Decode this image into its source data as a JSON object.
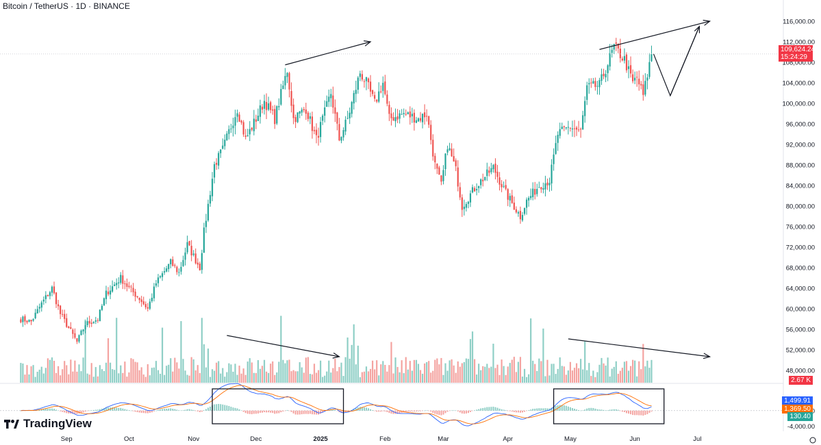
{
  "header": {
    "title": "Bitcoin / TetherUS · 1D · BINANCE"
  },
  "brand": {
    "name": "TradingView"
  },
  "price_badge": {
    "price": "109,624.24",
    "countdown": "15:24:29"
  },
  "volume_badge": "2.67 K",
  "macd_badges": {
    "macd": "1,499.91",
    "signal": "1,369.50",
    "hist": "130.40"
  },
  "colors": {
    "up": "#26a69a",
    "down": "#ef5350",
    "vol_up": "#8fcfc6",
    "vol_down": "#f4a3a0",
    "macd_line": "#2962ff",
    "signal_line": "#ff6d00"
  },
  "chart_data": {
    "type": "candlestick",
    "price_axis": {
      "ticks": [
        "116,000.00",
        "112,000.00",
        "108,000.00",
        "104,000.00",
        "100,000.00",
        "96,000.00",
        "92,000.00",
        "88,000.00",
        "84,000.00",
        "80,000.00",
        "76,000.00",
        "72,000.00",
        "68,000.00",
        "64,000.00",
        "60,000.00",
        "56,000.00",
        "52,000.00",
        "48,000.00"
      ],
      "range": [
        46000,
        118000
      ]
    },
    "macd_axis": {
      "ticks": [
        "0.00",
        "-4,000.00"
      ],
      "range": [
        -5000,
        6000
      ]
    },
    "time_axis": [
      "Sep",
      "Oct",
      "Nov",
      "Dec",
      "2025",
      "Feb",
      "Mar",
      "Apr",
      "May",
      "Jun",
      "Jul"
    ],
    "price_path": [
      [
        "2024-08-10",
        58000
      ],
      [
        "2024-08-15",
        57500
      ],
      [
        "2024-08-20",
        61000
      ],
      [
        "2024-08-25",
        64000
      ],
      [
        "2024-08-29",
        59000
      ],
      [
        "2024-09-06",
        53500
      ],
      [
        "2024-09-10",
        57000
      ],
      [
        "2024-09-16",
        58000
      ],
      [
        "2024-09-20",
        63000
      ],
      [
        "2024-09-27",
        66000
      ],
      [
        "2024-10-01",
        64000
      ],
      [
        "2024-10-06",
        62000
      ],
      [
        "2024-10-10",
        60000
      ],
      [
        "2024-10-14",
        65000
      ],
      [
        "2024-10-21",
        69000
      ],
      [
        "2024-10-25",
        67000
      ],
      [
        "2024-10-29",
        72500
      ],
      [
        "2024-11-04",
        68000
      ],
      [
        "2024-11-06",
        75000
      ],
      [
        "2024-11-11",
        88000
      ],
      [
        "2024-11-15",
        91000
      ],
      [
        "2024-11-22",
        99000
      ],
      [
        "2024-11-26",
        93000
      ],
      [
        "2024-12-01",
        97000
      ],
      [
        "2024-12-05",
        100500
      ],
      [
        "2024-12-10",
        97000
      ],
      [
        "2024-12-16",
        106500
      ],
      [
        "2024-12-19",
        97000
      ],
      [
        "2024-12-25",
        99000
      ],
      [
        "2024-12-30",
        93000
      ],
      [
        "2025-01-06",
        102000
      ],
      [
        "2025-01-10",
        93000
      ],
      [
        "2025-01-14",
        97000
      ],
      [
        "2025-01-20",
        106000
      ],
      [
        "2025-01-23",
        104000
      ],
      [
        "2025-01-27",
        100000
      ],
      [
        "2025-01-31",
        104000
      ],
      [
        "2025-02-03",
        97000
      ],
      [
        "2025-02-10",
        98000
      ],
      [
        "2025-02-17",
        97000
      ],
      [
        "2025-02-21",
        98000
      ],
      [
        "2025-02-25",
        88000
      ],
      [
        "2025-02-28",
        84000
      ],
      [
        "2025-03-03",
        92000
      ],
      [
        "2025-03-07",
        87000
      ],
      [
        "2025-03-10",
        80000
      ],
      [
        "2025-03-17",
        84000
      ],
      [
        "2025-03-25",
        87500
      ],
      [
        "2025-03-31",
        82500
      ],
      [
        "2025-04-07",
        78000
      ],
      [
        "2025-04-10",
        81000
      ],
      [
        "2025-04-16",
        84000
      ],
      [
        "2025-04-21",
        85000
      ],
      [
        "2025-04-25",
        94000
      ],
      [
        "2025-05-01",
        95500
      ],
      [
        "2025-05-06",
        94500
      ],
      [
        "2025-05-09",
        103000
      ],
      [
        "2025-05-15",
        103500
      ],
      [
        "2025-05-22",
        111000
      ],
      [
        "2025-05-27",
        108500
      ],
      [
        "2025-05-31",
        104000
      ],
      [
        "2025-06-02",
        105000
      ],
      [
        "2025-06-05",
        101500
      ],
      [
        "2025-06-09",
        109624
      ]
    ],
    "annotations": {
      "price_resistance_level": 109624,
      "arrows_up_on_price": [
        [
          [
            "2024-12-15",
            107500
          ],
          [
            "2025-01-25",
            112000
          ]
        ],
        [
          [
            "2025-05-15",
            110500
          ],
          [
            "2025-07-07",
            116000
          ]
        ]
      ],
      "projected_path": [
        [
          "2025-06-10",
          109624
        ],
        [
          "2025-06-18",
          101500
        ],
        [
          "2025-07-02",
          115000
        ]
      ],
      "volume_arrows_down": [
        [
          "2024-11-17",
          "2025-01-10"
        ],
        [
          "2025-04-30",
          "2025-07-07"
        ]
      ],
      "macd_boxes": [
        [
          "2024-11-10",
          "2025-01-12"
        ],
        [
          "2025-04-23",
          "2025-06-15"
        ]
      ]
    }
  }
}
